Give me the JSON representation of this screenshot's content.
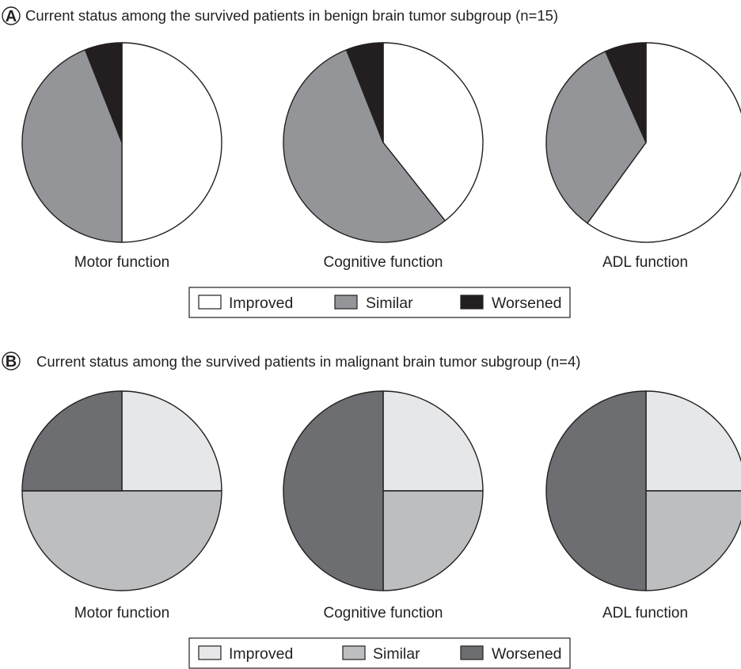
{
  "chart_data": [
    {
      "type": "pie",
      "panel_letter": "A",
      "title": "Current status among the survived patients in benign brain tumor subgroup (n=15)",
      "categories": [
        "Improved",
        "Similar",
        "Worsened"
      ],
      "colors": [
        "#ffffff",
        "#939598",
        "#231f20"
      ],
      "pies": [
        {
          "label": "Motor function",
          "values": [
            7.5,
            6.6,
            0.9
          ]
        },
        {
          "label": "Cognitive function",
          "values": [
            5.9,
            8.2,
            0.9
          ]
        },
        {
          "label": "ADL function",
          "values": [
            9,
            5,
            1
          ]
        }
      ],
      "legend": [
        "Improved",
        "Similar",
        "Worsened"
      ]
    },
    {
      "type": "pie",
      "panel_letter": "B",
      "title": "Current status among the survived patients in malignant brain tumor subgroup (n=4)",
      "categories": [
        "Improved",
        "Similar",
        "Worsened"
      ],
      "colors": [
        "#e6e7e8",
        "#bcbec0",
        "#6d6e71"
      ],
      "pies": [
        {
          "label": "Motor function",
          "values": [
            1,
            2,
            1
          ]
        },
        {
          "label": "Cognitive function",
          "values": [
            1,
            1,
            2
          ]
        },
        {
          "label": "ADL function",
          "values": [
            1,
            1,
            2
          ]
        }
      ],
      "legend": [
        "Improved",
        "Similar",
        "Worsened"
      ]
    }
  ]
}
